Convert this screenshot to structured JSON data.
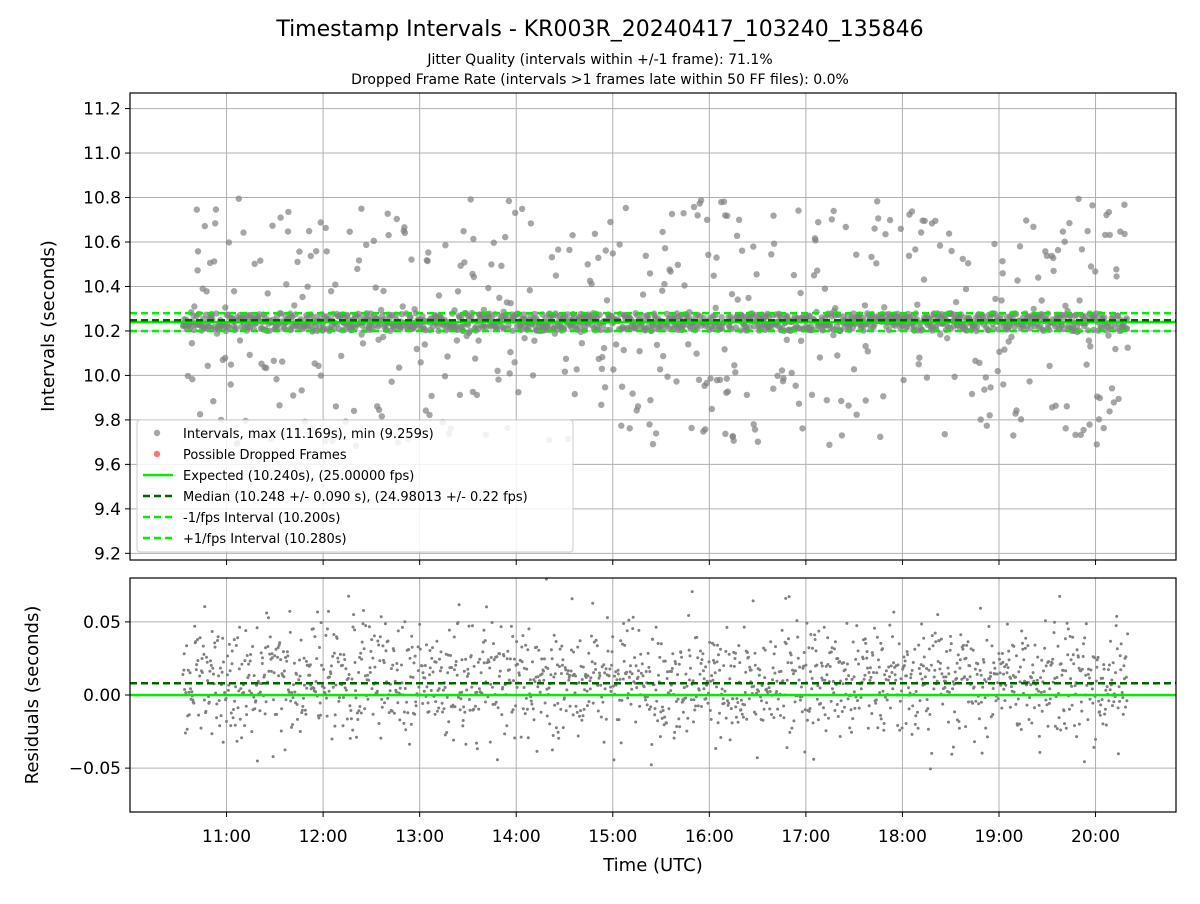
{
  "figure": {
    "title": "Timestamp Intervals - KR003R_20240417_103240_135846",
    "subtitle_1": "Jitter Quality (intervals within +/-1 frame): 71.1%",
    "subtitle_2": "Dropped Frame Rate (intervals >1 frames late within 50 FF files): 0.0%"
  },
  "colors": {
    "points": "#808080",
    "expected": "#00ee00",
    "median": "#006400",
    "interval_band": "#00ee00",
    "dropped": "#ff5050",
    "grid": "#b0b0b0"
  },
  "chart_data": [
    {
      "type": "scatter",
      "ylabel": "Intervals (seconds)",
      "xlim": [
        "10:00",
        "20:50"
      ],
      "ylim": [
        9.17,
        11.27
      ],
      "x_ticks": [
        "11:00",
        "12:00",
        "13:00",
        "14:00",
        "15:00",
        "16:00",
        "17:00",
        "18:00",
        "19:00",
        "20:00"
      ],
      "y_ticks": [
        "9.2",
        "9.4",
        "9.6",
        "9.8",
        "10.0",
        "10.2",
        "10.4",
        "10.6",
        "10.8",
        "11.0",
        "11.2"
      ],
      "grid": true,
      "legend_position": "lower-left",
      "data_range": {
        "x_start": "10:33",
        "x_end": "20:20"
      },
      "series": [
        {
          "name": "Intervals, max (11.169s), min (9.259s)",
          "kind": "points",
          "max": 11.169,
          "min": 9.259,
          "core": 10.24,
          "spread": 0.35
        },
        {
          "name": "Possible Dropped Frames",
          "kind": "points",
          "count": 0
        }
      ],
      "lines": [
        {
          "name": "Expected (10.240s), (25.00000 fps)",
          "y": 10.24,
          "style": "solid"
        },
        {
          "name": "Median (10.248 +/- 0.090 s), (24.98013 +/- 0.22 fps)",
          "y": 10.248,
          "style": "dashed"
        },
        {
          "name": "-1/fps Interval (10.200s)",
          "y": 10.2,
          "style": "dashed"
        },
        {
          "name": "+1/fps Interval (10.280s)",
          "y": 10.28,
          "style": "dashed"
        }
      ]
    },
    {
      "type": "scatter",
      "xlabel": "Time (UTC)",
      "ylabel": "Residuals (seconds)",
      "xlim": [
        "10:00",
        "20:50"
      ],
      "ylim": [
        -0.08,
        0.08
      ],
      "x_ticks": [
        "11:00",
        "12:00",
        "13:00",
        "14:00",
        "15:00",
        "16:00",
        "17:00",
        "18:00",
        "19:00",
        "20:00"
      ],
      "y_ticks": [
        "−0.05",
        "0.00",
        "0.05"
      ],
      "y_tick_values": [
        -0.05,
        0,
        0.05
      ],
      "grid": true,
      "data_range": {
        "x_start": "10:33",
        "x_end": "20:20"
      },
      "lines": [
        {
          "y": 0.0,
          "style": "solid"
        },
        {
          "y": 0.008,
          "style": "dashed"
        }
      ]
    }
  ]
}
